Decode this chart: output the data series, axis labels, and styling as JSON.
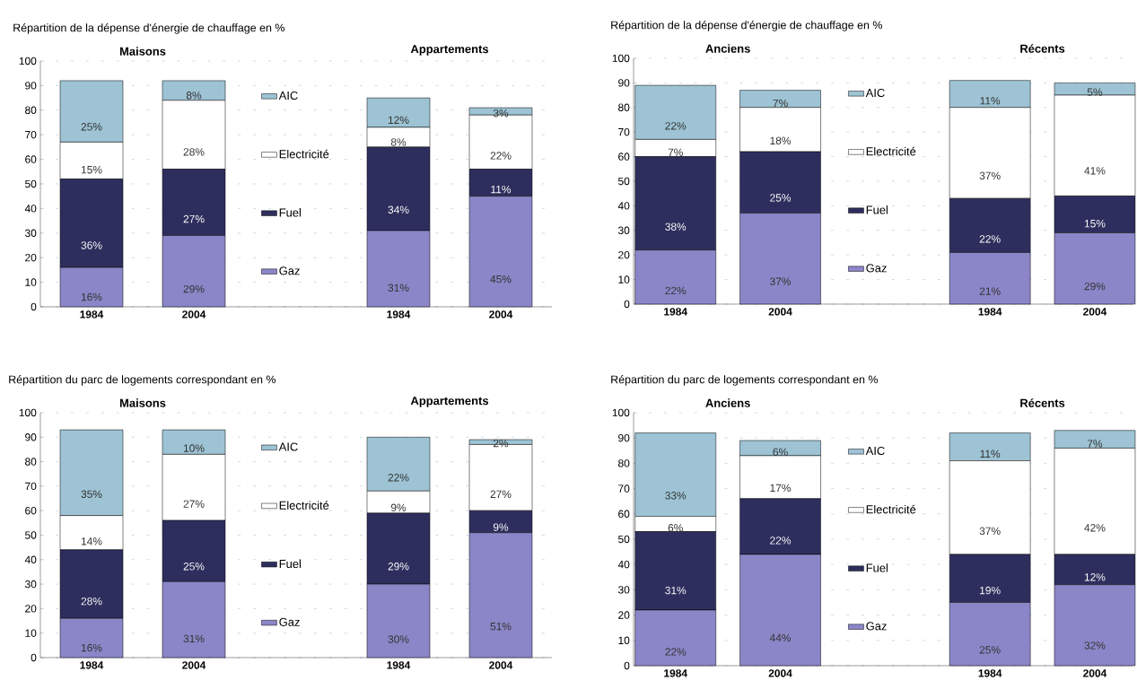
{
  "chart_data": [
    {
      "type": "bar",
      "stacked": true,
      "title": "Répartition de la dépense d'énergie de chauffage  en %",
      "annotations": [
        "Maisons",
        "Appartements"
      ],
      "categories": [
        "1984",
        "2004",
        null,
        "1984",
        "2004"
      ],
      "ylim": [
        0,
        100
      ],
      "yticks": [
        0,
        10,
        20,
        30,
        40,
        50,
        60,
        70,
        80,
        90,
        100
      ],
      "grid": "y",
      "legend": "center",
      "series": [
        {
          "name": "Gaz",
          "color": "#8b86c8",
          "values": [
            16,
            29,
            null,
            31,
            45
          ],
          "value_labels": [
            "16%",
            "29%",
            null,
            "31%",
            "45%"
          ]
        },
        {
          "name": "Fuel",
          "color": "#2e2e5e",
          "values": [
            36,
            27,
            null,
            34,
            11
          ],
          "value_labels": [
            "36%",
            "27%",
            null,
            "34%",
            "11%"
          ]
        },
        {
          "name": "Electricité",
          "color": "#ffffff",
          "values": [
            15,
            28,
            null,
            8,
            22
          ],
          "value_labels": [
            "15%",
            "28%",
            null,
            "8%",
            "22%"
          ]
        },
        {
          "name": "AIC",
          "color": "#9dc3d4",
          "values": [
            25,
            8,
            null,
            12,
            3
          ],
          "value_labels": [
            "25%",
            "8%",
            null,
            "12%",
            "3%"
          ]
        }
      ]
    },
    {
      "type": "bar",
      "stacked": true,
      "title": "Répartition de la dépense d'énergie de chauffage en %",
      "annotations": [
        "Anciens",
        "Récents"
      ],
      "categories": [
        "1984",
        "2004",
        null,
        "1984",
        "2004"
      ],
      "ylim": [
        0,
        100
      ],
      "yticks": [
        0,
        10,
        20,
        30,
        40,
        50,
        60,
        70,
        80,
        90,
        100
      ],
      "grid": "y",
      "legend": "center",
      "series": [
        {
          "name": "Gaz",
          "color": "#8b86c8",
          "values": [
            22,
            37,
            null,
            21,
            29
          ],
          "value_labels": [
            "22%",
            "37%",
            null,
            "21%",
            "29%"
          ]
        },
        {
          "name": "Fuel",
          "color": "#2e2e5e",
          "values": [
            38,
            25,
            null,
            22,
            15
          ],
          "value_labels": [
            "38%",
            "25%",
            null,
            "22%",
            "15%"
          ]
        },
        {
          "name": "Electricité",
          "color": "#ffffff",
          "values": [
            7,
            18,
            null,
            37,
            41
          ],
          "value_labels": [
            "7%",
            "18%",
            null,
            "37%",
            "41%"
          ]
        },
        {
          "name": "AIC",
          "color": "#9dc3d4",
          "values": [
            22,
            7,
            null,
            11,
            5
          ],
          "value_labels": [
            "22%",
            "7%",
            null,
            "11%",
            "5%"
          ]
        }
      ]
    },
    {
      "type": "bar",
      "stacked": true,
      "title": "Répartition du parc de logements correspondant en %",
      "annotations": [
        "Maisons",
        "Appartements"
      ],
      "categories": [
        "1984",
        "2004",
        null,
        "1984",
        "2004"
      ],
      "ylim": [
        0,
        100
      ],
      "yticks": [
        0,
        10,
        20,
        30,
        40,
        50,
        60,
        70,
        80,
        90,
        100
      ],
      "grid": "y",
      "legend": "center",
      "series": [
        {
          "name": "Gaz",
          "color": "#8b86c8",
          "values": [
            16,
            31,
            null,
            30,
            51
          ],
          "value_labels": [
            "16%",
            "31%",
            null,
            "30%",
            "51%"
          ]
        },
        {
          "name": "Fuel",
          "color": "#2e2e5e",
          "values": [
            28,
            25,
            null,
            29,
            9
          ],
          "value_labels": [
            "28%",
            "25%",
            null,
            "29%",
            "9%"
          ]
        },
        {
          "name": "Electricité",
          "color": "#ffffff",
          "values": [
            14,
            27,
            null,
            9,
            27
          ],
          "value_labels": [
            "14%",
            "27%",
            null,
            "9%",
            "27%"
          ]
        },
        {
          "name": "AIC",
          "color": "#9dc3d4",
          "values": [
            35,
            10,
            null,
            22,
            2
          ],
          "value_labels": [
            "35%",
            "10%",
            null,
            "22%",
            "2%"
          ]
        }
      ]
    },
    {
      "type": "bar",
      "stacked": true,
      "title": "Répartition du parc de logements correspondant en %",
      "annotations": [
        "Anciens",
        "Récents"
      ],
      "categories": [
        "1984",
        "2004",
        null,
        "1984",
        "2004"
      ],
      "ylim": [
        0,
        100
      ],
      "yticks": [
        0,
        10,
        20,
        30,
        40,
        50,
        60,
        70,
        80,
        90,
        100
      ],
      "grid": "y",
      "legend": "center",
      "series": [
        {
          "name": "Gaz",
          "color": "#8b86c8",
          "values": [
            22,
            44,
            null,
            25,
            32
          ],
          "value_labels": [
            "22%",
            "44%",
            null,
            "25%",
            "32%"
          ]
        },
        {
          "name": "Fuel",
          "color": "#2e2e5e",
          "values": [
            31,
            22,
            null,
            19,
            12
          ],
          "value_labels": [
            "31%",
            "22%",
            null,
            "19%",
            "12%"
          ]
        },
        {
          "name": "Electricité",
          "color": "#ffffff",
          "values": [
            6,
            17,
            null,
            37,
            42
          ],
          "value_labels": [
            "6%",
            "17%",
            null,
            "37%",
            "42%"
          ]
        },
        {
          "name": "AIC",
          "color": "#9dc3d4",
          "values": [
            33,
            6,
            null,
            11,
            7
          ],
          "value_labels": [
            "33%",
            "6%",
            null,
            "11%",
            "7%"
          ]
        }
      ]
    }
  ]
}
